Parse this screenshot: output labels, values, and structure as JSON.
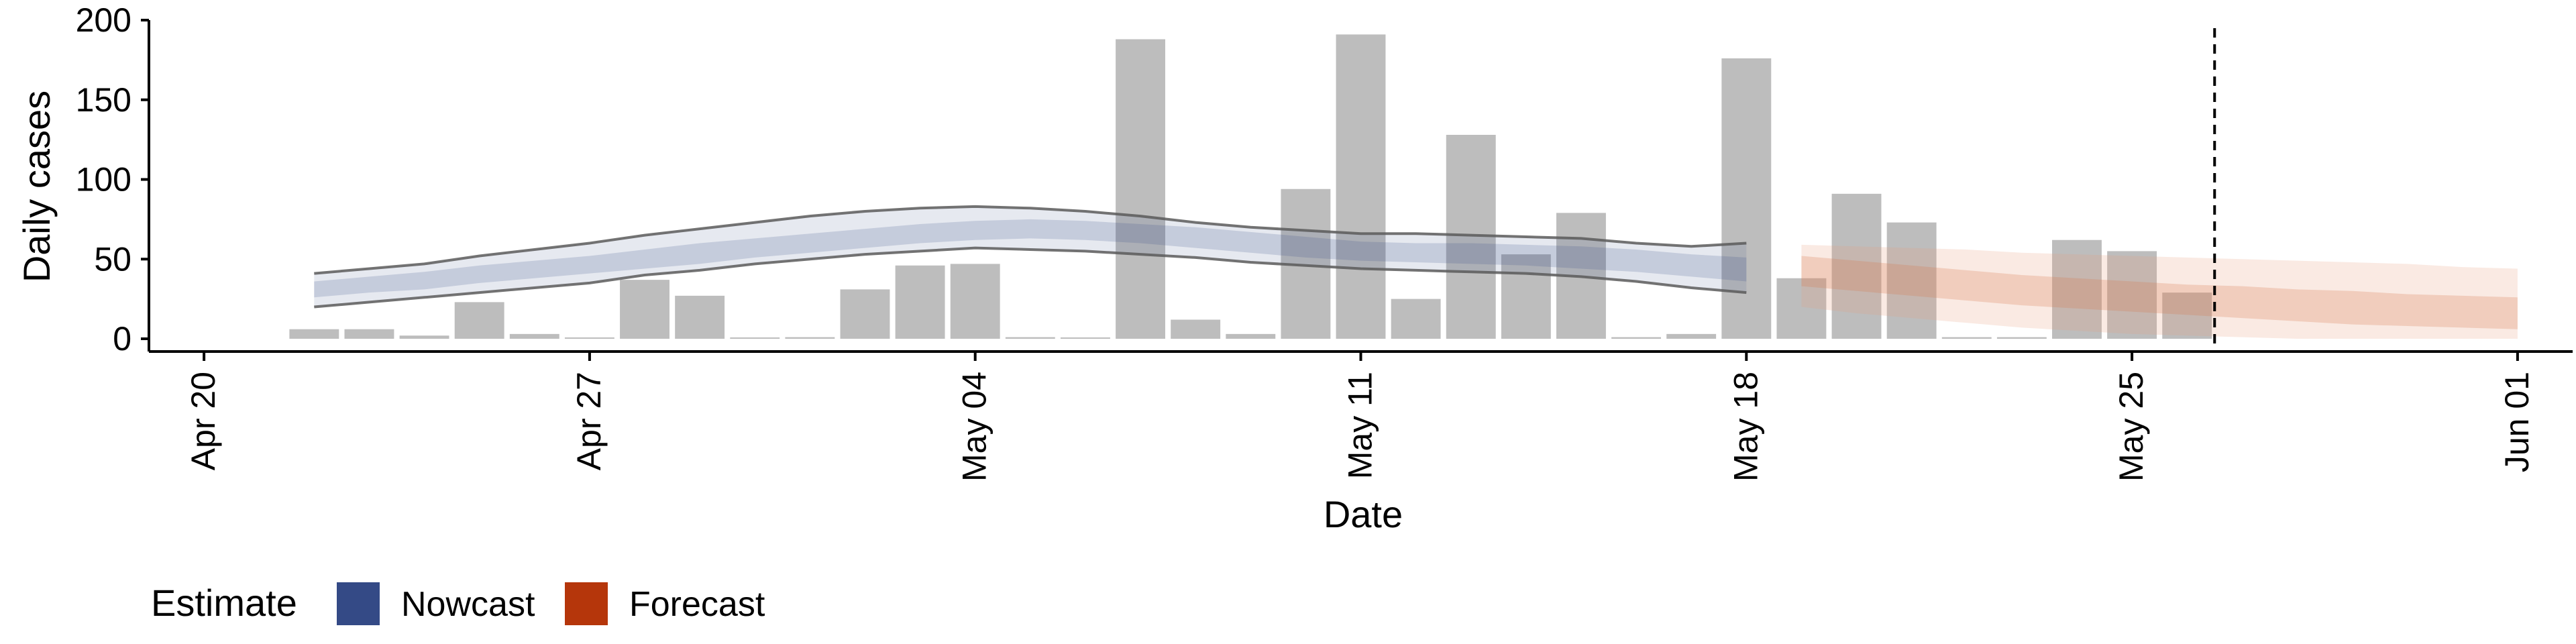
{
  "chart_data": {
    "type": "bar",
    "xlabel": "Date",
    "ylabel": "Daily cases",
    "xlim": [
      "2020-04-19",
      "2020-06-02"
    ],
    "ylim": [
      -8,
      200
    ],
    "y_ticks": [
      0,
      50,
      100,
      150,
      200
    ],
    "x_ticks": [
      {
        "date": "2020-04-20",
        "label": "Apr 20"
      },
      {
        "date": "2020-04-27",
        "label": "Apr 27"
      },
      {
        "date": "2020-05-04",
        "label": "May 04"
      },
      {
        "date": "2020-05-11",
        "label": "May 11"
      },
      {
        "date": "2020-05-18",
        "label": "May 18"
      },
      {
        "date": "2020-05-25",
        "label": "May 25"
      },
      {
        "date": "2020-06-01",
        "label": "Jun 01"
      }
    ],
    "grid": false,
    "legend": {
      "title": "Estimate",
      "position": "bottom-left",
      "items": [
        {
          "label": "Nowcast",
          "color": "#344a86"
        },
        {
          "label": "Forecast",
          "color": "#b5360b"
        }
      ]
    },
    "bar_color": "#bdbdbd",
    "bars": [
      {
        "date": "2020-04-22",
        "value": 6
      },
      {
        "date": "2020-04-23",
        "value": 6
      },
      {
        "date": "2020-04-24",
        "value": 2
      },
      {
        "date": "2020-04-25",
        "value": 23
      },
      {
        "date": "2020-04-26",
        "value": 3
      },
      {
        "date": "2020-04-27",
        "value": 0
      },
      {
        "date": "2020-04-28",
        "value": 37
      },
      {
        "date": "2020-04-29",
        "value": 27
      },
      {
        "date": "2020-04-30",
        "value": 0
      },
      {
        "date": "2020-05-01",
        "value": 1
      },
      {
        "date": "2020-05-02",
        "value": 31
      },
      {
        "date": "2020-05-03",
        "value": 46
      },
      {
        "date": "2020-05-04",
        "value": 47
      },
      {
        "date": "2020-05-05",
        "value": 1
      },
      {
        "date": "2020-05-06",
        "value": 0
      },
      {
        "date": "2020-05-07",
        "value": 188
      },
      {
        "date": "2020-05-08",
        "value": 12
      },
      {
        "date": "2020-05-09",
        "value": 3
      },
      {
        "date": "2020-05-10",
        "value": 94
      },
      {
        "date": "2020-05-11",
        "value": 191
      },
      {
        "date": "2020-05-12",
        "value": 25
      },
      {
        "date": "2020-05-13",
        "value": 128
      },
      {
        "date": "2020-05-14",
        "value": 53
      },
      {
        "date": "2020-05-15",
        "value": 79
      },
      {
        "date": "2020-05-16",
        "value": 1
      },
      {
        "date": "2020-05-17",
        "value": 3
      },
      {
        "date": "2020-05-18",
        "value": 176
      },
      {
        "date": "2020-05-19",
        "value": 38
      },
      {
        "date": "2020-05-20",
        "value": 91
      },
      {
        "date": "2020-05-21",
        "value": 73
      },
      {
        "date": "2020-05-22",
        "value": 1
      },
      {
        "date": "2020-05-23",
        "value": 1
      },
      {
        "date": "2020-05-24",
        "value": 62
      },
      {
        "date": "2020-05-25",
        "value": 55
      },
      {
        "date": "2020-05-26",
        "value": 29
      }
    ],
    "vline_date": "2020-05-26",
    "nowcast": {
      "dates": [
        "2020-04-22",
        "2020-04-23",
        "2020-04-24",
        "2020-04-25",
        "2020-04-26",
        "2020-04-27",
        "2020-04-28",
        "2020-04-29",
        "2020-04-30",
        "2020-05-01",
        "2020-05-02",
        "2020-05-03",
        "2020-05-04",
        "2020-05-05",
        "2020-05-06",
        "2020-05-07",
        "2020-05-08",
        "2020-05-09",
        "2020-05-10",
        "2020-05-11",
        "2020-05-12",
        "2020-05-13",
        "2020-05-14",
        "2020-05-15",
        "2020-05-16",
        "2020-05-17",
        "2020-05-18"
      ],
      "median": [
        31,
        34,
        37,
        41,
        44,
        47,
        51,
        54,
        58,
        61,
        64,
        67,
        69,
        70,
        69,
        67,
        64,
        61,
        58,
        56,
        55,
        54,
        53,
        52,
        50,
        47,
        44
      ],
      "lower50": [
        26,
        29,
        31,
        35,
        38,
        41,
        44,
        47,
        51,
        54,
        57,
        60,
        62,
        63,
        62,
        60,
        57,
        54,
        51,
        49,
        48,
        47,
        46,
        44,
        42,
        39,
        36
      ],
      "upper50": [
        36,
        39,
        42,
        46,
        49,
        52,
        56,
        60,
        63,
        66,
        69,
        72,
        74,
        75,
        74,
        72,
        70,
        67,
        64,
        61,
        60,
        60,
        59,
        58,
        56,
        53,
        51
      ],
      "lower90": [
        20,
        23,
        26,
        29,
        32,
        35,
        40,
        43,
        47,
        50,
        53,
        55,
        57,
        56,
        55,
        53,
        51,
        48,
        46,
        44,
        43,
        42,
        41,
        39,
        36,
        32,
        29
      ],
      "upper90": [
        41,
        44,
        47,
        52,
        56,
        60,
        65,
        69,
        73,
        77,
        80,
        82,
        83,
        82,
        80,
        77,
        73,
        70,
        68,
        66,
        66,
        65,
        64,
        63,
        60,
        58,
        60
      ]
    },
    "forecast": {
      "dates": [
        "2020-05-19",
        "2020-05-20",
        "2020-05-21",
        "2020-05-22",
        "2020-05-23",
        "2020-05-24",
        "2020-05-25",
        "2020-05-26",
        "2020-05-27",
        "2020-05-28",
        "2020-05-29",
        "2020-05-30",
        "2020-05-31",
        "2020-06-01"
      ],
      "median": [
        42,
        39,
        36,
        33,
        30,
        28,
        26,
        24,
        22,
        20,
        18,
        16,
        15,
        14
      ],
      "lower50": [
        33,
        30,
        27,
        24,
        21,
        19,
        17,
        15,
        13,
        11,
        9,
        8,
        7,
        6
      ],
      "upper50": [
        52,
        49,
        46,
        43,
        40,
        38,
        36,
        34,
        33,
        31,
        30,
        28,
        27,
        26
      ],
      "lower90": [
        20,
        16,
        13,
        10,
        7,
        5,
        3,
        2,
        1,
        0,
        0,
        0,
        0,
        0
      ],
      "upper90": [
        59,
        58,
        57,
        56,
        54,
        53,
        52,
        51,
        50,
        49,
        48,
        47,
        45,
        44
      ]
    }
  }
}
